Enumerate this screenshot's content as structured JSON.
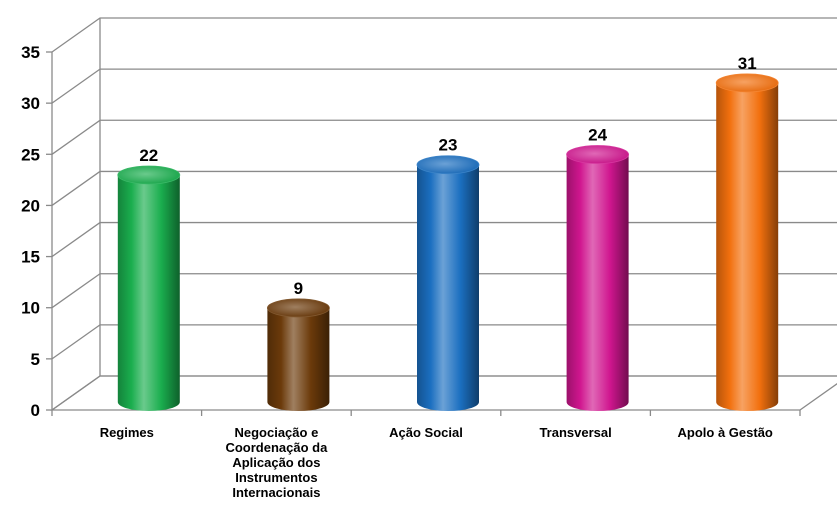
{
  "chart_data": {
    "type": "bar",
    "title": "",
    "xlabel": "",
    "ylabel": "",
    "categories": [
      "Regimes",
      "Negociação e Coordenação da Aplicação dos Instrumentos Internacionais",
      "Ação Social",
      "Transversal",
      "Apolo à Gestão"
    ],
    "category_lines": [
      [
        "Regimes"
      ],
      [
        "Negociação e",
        "Coordenação da",
        "Aplicação dos",
        "Instrumentos",
        "Internacionais"
      ],
      [
        "Ação Social"
      ],
      [
        "Transversal"
      ],
      [
        "Apolo à Gestão"
      ]
    ],
    "values": [
      22,
      9,
      23,
      24,
      31
    ],
    "data_labels": [
      "22",
      "9",
      "23",
      "24",
      "31"
    ],
    "colors": [
      "#1aae4e",
      "#6b3a0a",
      "#1b6fc0",
      "#d0168f",
      "#f2700e"
    ],
    "yticks": [
      "0",
      "5",
      "10",
      "15",
      "20",
      "25",
      "30",
      "35"
    ],
    "ylim": [
      0,
      35
    ],
    "grid": true,
    "legend": "none",
    "style": "3d-cylinder"
  }
}
